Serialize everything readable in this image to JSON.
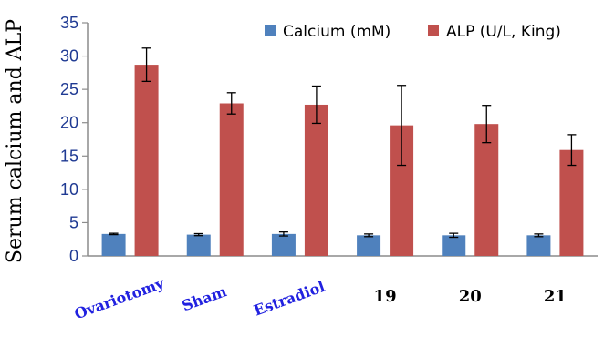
{
  "chart_data": {
    "type": "bar",
    "title": "",
    "xlabel": "",
    "ylabel": "Serum calcium and ALP",
    "ylim": [
      0,
      35
    ],
    "yticks": [
      0,
      5,
      10,
      15,
      20,
      25,
      30,
      35
    ],
    "grid": false,
    "legend_position": "top-right",
    "categories": [
      "Ovariotomy",
      "Sham",
      "Estradiol",
      "19",
      "20",
      "21"
    ],
    "category_label_colors": [
      "#2121e0",
      "#2121e0",
      "#2121e0",
      "#000000",
      "#000000",
      "#000000"
    ],
    "series": [
      {
        "name": "Calcium (mM)",
        "color": "#4f81bd",
        "values": [
          3.3,
          3.2,
          3.3,
          3.1,
          3.1,
          3.1
        ],
        "errors": [
          0.1,
          0.15,
          0.3,
          0.2,
          0.3,
          0.2
        ]
      },
      {
        "name": "ALP  (U/L, King)",
        "color": "#c0504d",
        "values": [
          28.7,
          22.9,
          22.7,
          19.6,
          19.8,
          15.9
        ],
        "errors": [
          2.5,
          1.6,
          2.8,
          6.0,
          2.8,
          2.3
        ]
      }
    ]
  }
}
